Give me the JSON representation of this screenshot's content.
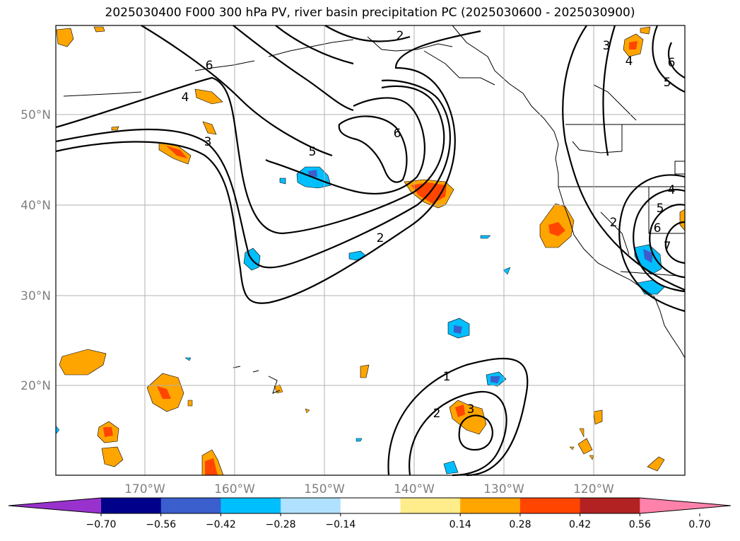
{
  "title": "2025030400 F000 300 hPa PV, river basin precipitation PC (2025030600 - 2025030900)",
  "lat_labels": [
    "50°N",
    "40°N",
    "30°N",
    "20°N"
  ],
  "lon_labels": [
    "170°W",
    "160°W",
    "150°W",
    "140°W",
    "130°W",
    "120°W"
  ],
  "contour_labels": [
    "2",
    "6",
    "4",
    "3",
    "5",
    "6",
    "2",
    "3",
    "4",
    "6",
    "5",
    "4",
    "5",
    "6",
    "7",
    "2",
    "1",
    "2",
    "3"
  ],
  "colorbar": {
    "tick_labels": [
      "−0.70",
      "−0.56",
      "−0.42",
      "−0.28",
      "−0.14",
      "0.14",
      "0.28",
      "0.42",
      "0.56",
      "0.70"
    ],
    "colors": [
      "#9932CC",
      "#00008B",
      "#3A5FCD",
      "#00BFFF",
      "#B0E2FF",
      "#FFFFFF",
      "#FFEC8B",
      "#FFA500",
      "#FF4500",
      "#B22222",
      "#FF82AB"
    ]
  },
  "colors": {
    "contour": "#000000",
    "grid": "#b0b0b0",
    "coast": "#000000"
  }
}
